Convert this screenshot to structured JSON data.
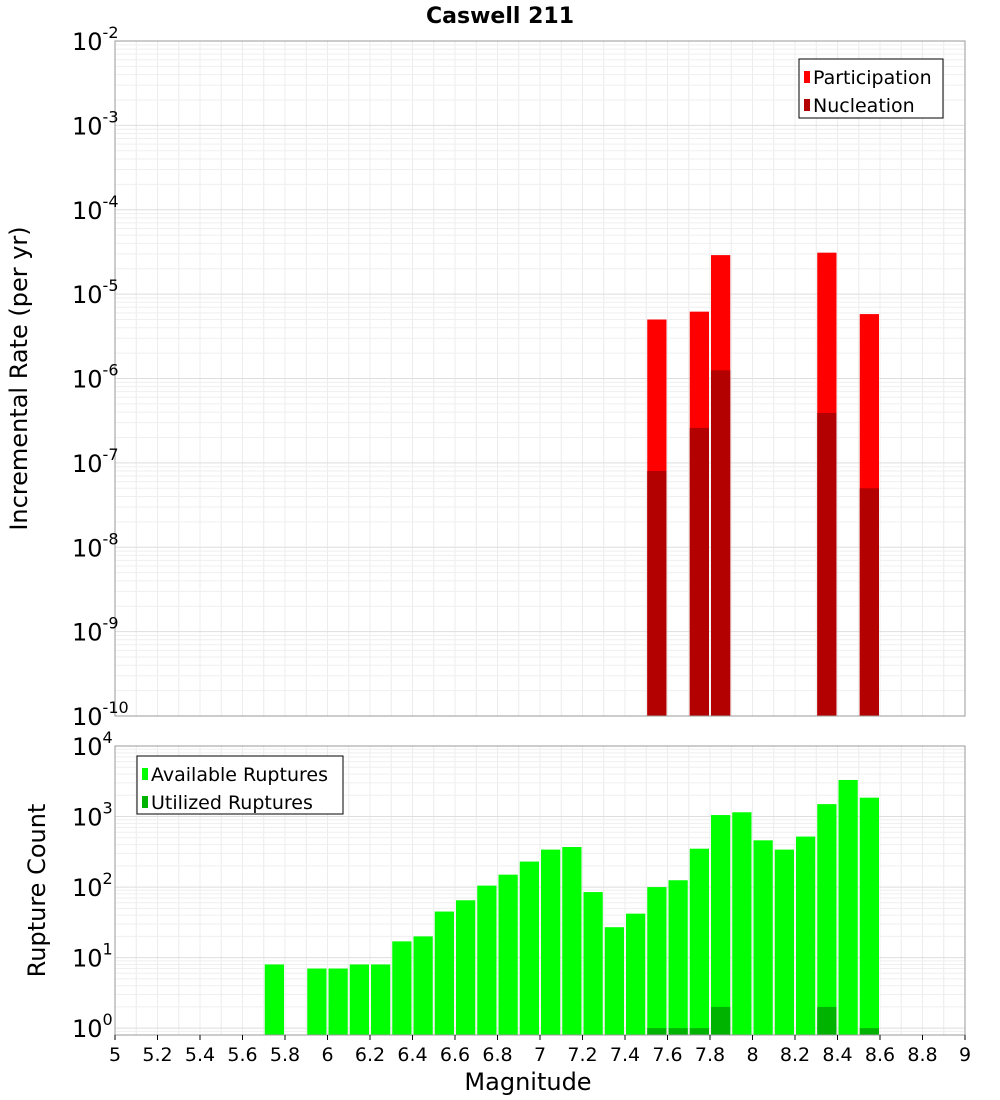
{
  "chart_data": [
    {
      "type": "bar",
      "title": "Caswell 211",
      "xlabel": "",
      "ylabel": "Incremental Rate (per yr)",
      "yscale": "log",
      "ylim": [
        1e-10,
        0.01
      ],
      "xlim": [
        5,
        9
      ],
      "grid": true,
      "legend_position": "top-right",
      "y_ticks": [
        {
          "base": "10",
          "exp": "-2"
        },
        {
          "base": "10",
          "exp": "-3"
        },
        {
          "base": "10",
          "exp": "-4"
        },
        {
          "base": "10",
          "exp": "-5"
        },
        {
          "base": "10",
          "exp": "-6"
        },
        {
          "base": "10",
          "exp": "-7"
        },
        {
          "base": "10",
          "exp": "-8"
        },
        {
          "base": "10",
          "exp": "-9"
        },
        {
          "base": "10",
          "exp": "-10"
        }
      ],
      "bin_width": 0.1,
      "series": [
        {
          "name": "Participation",
          "color": "#ff0000",
          "x": [
            7.55,
            7.75,
            7.85,
            8.35,
            8.55
          ],
          "values": [
            5e-06,
            6.2e-06,
            2.9e-05,
            3.1e-05,
            5.8e-06
          ]
        },
        {
          "name": "Nucleation",
          "color": "#b30000",
          "x": [
            7.55,
            7.75,
            7.85,
            8.35,
            8.55
          ],
          "values": [
            8e-08,
            2.6e-07,
            1.25e-06,
            3.9e-07,
            5e-08
          ]
        }
      ]
    },
    {
      "type": "bar",
      "title": "",
      "xlabel": "Magnitude",
      "ylabel": "Rupture Count",
      "yscale": "log",
      "ylim": [
        0.8,
        10000
      ],
      "xlim": [
        5,
        9
      ],
      "grid": true,
      "legend_position": "top-left",
      "x_ticks": [
        "5",
        "5.2",
        "5.4",
        "5.6",
        "5.8",
        "6",
        "6.2",
        "6.4",
        "6.6",
        "6.8",
        "7",
        "7.2",
        "7.4",
        "7.6",
        "7.8",
        "8",
        "8.2",
        "8.4",
        "8.6",
        "8.8",
        "9"
      ],
      "y_ticks": [
        {
          "base": "10",
          "exp": "4"
        },
        {
          "base": "10",
          "exp": "3"
        },
        {
          "base": "10",
          "exp": "2"
        },
        {
          "base": "10",
          "exp": "1"
        },
        {
          "base": "10",
          "exp": "0"
        }
      ],
      "bin_width": 0.1,
      "series": [
        {
          "name": "Available Ruptures",
          "color": "#00ff00",
          "x": [
            5.75,
            5.95,
            6.05,
            6.15,
            6.25,
            6.35,
            6.45,
            6.55,
            6.65,
            6.75,
            6.85,
            6.95,
            7.05,
            7.15,
            7.25,
            7.35,
            7.45,
            7.55,
            7.65,
            7.75,
            7.85,
            7.95,
            8.05,
            8.15,
            8.25,
            8.35,
            8.45,
            8.55
          ],
          "values": [
            8,
            7,
            7,
            8,
            8,
            17,
            20,
            45,
            65,
            105,
            150,
            230,
            340,
            370,
            85,
            27,
            42,
            100,
            125,
            350,
            1050,
            1150,
            460,
            340,
            520,
            1500,
            3300,
            1850
          ]
        },
        {
          "name": "Utilized Ruptures",
          "color": "#00b300",
          "x": [
            7.55,
            7.65,
            7.75,
            7.85,
            8.35,
            8.55
          ],
          "values": [
            1,
            1,
            1,
            2,
            2,
            1
          ]
        }
      ]
    }
  ]
}
